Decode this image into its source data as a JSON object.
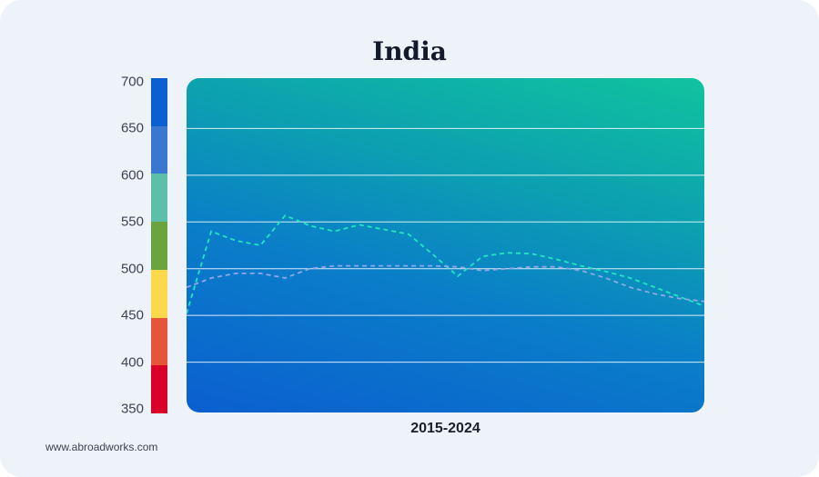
{
  "chart_data": {
    "type": "line",
    "title": "India",
    "xlabel": "2015-2024",
    "ylabel": "",
    "ylim": [
      350,
      700
    ],
    "yticks": [
      350,
      400,
      450,
      500,
      550,
      600,
      650,
      700
    ],
    "grid": true,
    "x": [
      0,
      1,
      2,
      3,
      4,
      5,
      6,
      7,
      8,
      9,
      10,
      11,
      12,
      13,
      14,
      15,
      16,
      17,
      18,
      19,
      20,
      21
    ],
    "series": [
      {
        "name": "",
        "color": "#22e6c2",
        "style": "dashed",
        "values": [
          452,
          540,
          530,
          525,
          557,
          546,
          540,
          547,
          542,
          537,
          515,
          492,
          513,
          517,
          516,
          510,
          503,
          497,
          490,
          480,
          470,
          460
        ]
      },
      {
        "name": "",
        "color": "#8fa8e8",
        "style": "dashed",
        "values": [
          480,
          490,
          495,
          495,
          490,
          500,
          503,
          503,
          503,
          503,
          503,
          502,
          498,
          500,
          502,
          502,
          498,
          490,
          480,
          473,
          468,
          465
        ]
      }
    ],
    "color_bands": [
      {
        "from": 650,
        "to": 700,
        "color": "#0b5fd0"
      },
      {
        "from": 600,
        "to": 650,
        "color": "#3a77cf"
      },
      {
        "from": 550,
        "to": 600,
        "color": "#5bbfa9"
      },
      {
        "from": 500,
        "to": 550,
        "color": "#6ba33e"
      },
      {
        "from": 450,
        "to": 500,
        "color": "#fcd94c"
      },
      {
        "from": 400,
        "to": 450,
        "color": "#e5553a"
      },
      {
        "from": 350,
        "to": 400,
        "color": "#d9002a"
      }
    ]
  },
  "footer": {
    "credit": "www.abroadworks.com"
  }
}
